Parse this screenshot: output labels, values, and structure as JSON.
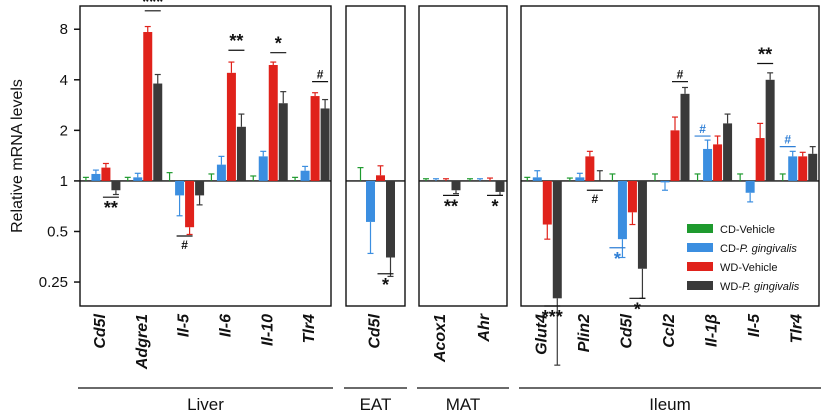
{
  "chart_data": {
    "type": "bar",
    "ylabel": "Relative mRNA levels",
    "yscale": "log2",
    "ylim": [
      0.18,
      11
    ],
    "yticks": [
      0.25,
      0.5,
      1,
      2,
      4,
      8
    ],
    "ytick_labels": [
      "0.25",
      "0.5",
      "1",
      "2",
      "4",
      "8"
    ],
    "baseline": 1,
    "series": [
      {
        "name": "CD-Vehicle",
        "legend_prefix": "CD-Vehicle",
        "legend_italic": "",
        "color": "#1e9a2e"
      },
      {
        "name": "CD-P. gingivalis",
        "legend_prefix": "CD-",
        "legend_italic": "P. gingivalis",
        "color": "#3b8ee0"
      },
      {
        "name": "WD-Vehicle",
        "legend_prefix": "WD-Vehicle",
        "legend_italic": "",
        "color": "#e0221b"
      },
      {
        "name": "WD-P. gingivalis",
        "legend_prefix": "WD-",
        "legend_italic": "P. gingivalis",
        "color": "#3a3a3a"
      }
    ],
    "panels": [
      {
        "label": "Liver",
        "categories": [
          {
            "name": "Cd5l",
            "values": [
              1,
              1.1,
              1.2,
              0.88
            ],
            "errors": [
              0.05,
              0.06,
              0.07,
              0.05
            ],
            "sig": [
              {
                "text": "**",
                "type": "star",
                "color": "#111111",
                "from": 2,
                "to": 3,
                "pos": "below",
                "value": 0.8
              }
            ]
          },
          {
            "name": "Adgre1",
            "values": [
              1,
              1.05,
              7.7,
              3.8
            ],
            "errors": [
              0.05,
              0.06,
              0.6,
              0.5
            ],
            "sig": [
              {
                "text": "***",
                "type": "star",
                "color": "#111111",
                "from": 2,
                "to": 3,
                "pos": "above",
                "value": 10.3
              }
            ]
          },
          {
            "name": "Il-5",
            "values": [
              1,
              0.82,
              0.53,
              0.82
            ],
            "errors": [
              0.12,
              0.2,
              0.05,
              0.1
            ],
            "sig": [
              {
                "text": "#",
                "type": "hash",
                "color": "#111111",
                "from": 1,
                "to": 2,
                "pos": "below",
                "value": 0.47
              }
            ]
          },
          {
            "name": "Il-6",
            "values": [
              1,
              1.25,
              4.4,
              2.1
            ],
            "errors": [
              0.1,
              0.15,
              0.7,
              0.4
            ],
            "sig": [
              {
                "text": "**",
                "type": "star",
                "color": "#111111",
                "from": 2,
                "to": 3,
                "pos": "above",
                "value": 6.0
              }
            ]
          },
          {
            "name": "Il-10",
            "values": [
              1,
              1.4,
              4.9,
              2.9
            ],
            "errors": [
              0.07,
              0.1,
              0.2,
              0.5
            ],
            "sig": [
              {
                "text": "*",
                "type": "star",
                "color": "#111111",
                "from": 2,
                "to": 3,
                "pos": "above",
                "value": 5.8
              }
            ]
          },
          {
            "name": "Tlr4",
            "values": [
              1,
              1.15,
              3.2,
              2.7
            ],
            "errors": [
              0.05,
              0.07,
              0.15,
              0.35
            ],
            "sig": [
              {
                "text": "#",
                "type": "hash",
                "color": "#111111",
                "from": 2,
                "to": 3,
                "pos": "above",
                "value": 3.9
              }
            ]
          }
        ]
      },
      {
        "label": "EAT",
        "categories": [
          {
            "name": "Cd5l",
            "values": [
              1,
              0.57,
              1.08,
              0.35
            ],
            "errors": [
              0.2,
              0.2,
              0.15,
              0.08
            ],
            "sig": [
              {
                "text": "*",
                "type": "star",
                "color": "#111111",
                "from": 2,
                "to": 3,
                "pos": "below",
                "value": 0.28
              }
            ]
          }
        ]
      },
      {
        "label": "MAT",
        "categories": [
          {
            "name": "Acox1",
            "values": [
              1,
              1,
              1,
              0.88
            ],
            "errors": [
              0.03,
              0.03,
              0.03,
              0.04
            ],
            "sig": [
              {
                "text": "**",
                "type": "star",
                "color": "#111111",
                "from": 2,
                "to": 3,
                "pos": "below",
                "value": 0.82
              }
            ]
          },
          {
            "name": "Ahr",
            "values": [
              1,
              1,
              1,
              0.86
            ],
            "errors": [
              0.03,
              0.03,
              0.04,
              0.04
            ],
            "sig": [
              {
                "text": "*",
                "type": "star",
                "color": "#111111",
                "from": 2,
                "to": 3,
                "pos": "below",
                "value": 0.82
              }
            ]
          }
        ]
      },
      {
        "label": "Ileum",
        "categories": [
          {
            "name": "Glut4",
            "values": [
              1,
              1.05,
              0.55,
              0.2
            ],
            "errors": [
              0.05,
              0.1,
              0.1,
              0.12
            ],
            "sig": [
              {
                "text": "***",
                "type": "star",
                "color": "#111111",
                "from": 2,
                "to": 3,
                "pos": "below",
                "value": 0.18
              }
            ]
          },
          {
            "name": "Plin2",
            "values": [
              1,
              1.05,
              1.4,
              1
            ],
            "errors": [
              0.04,
              0.06,
              0.1,
              0.15
            ],
            "sig": [
              {
                "text": "#",
                "type": "hash",
                "color": "#111111",
                "from": 2,
                "to": 3,
                "pos": "below",
                "value": 0.88
              }
            ]
          },
          {
            "name": "Cd5l",
            "values": [
              1,
              0.45,
              0.65,
              0.3
            ],
            "errors": [
              0.1,
              0.1,
              0.1,
              0.1
            ],
            "sig": [
              {
                "text": "*",
                "type": "star",
                "color": "#2f7fd6",
                "from": 0,
                "to": 1,
                "pos": "below",
                "value": 0.4
              },
              {
                "text": "*",
                "type": "star",
                "color": "#111111",
                "from": 2,
                "to": 3,
                "pos": "below",
                "value": 0.2
              }
            ]
          },
          {
            "name": "Ccl2",
            "values": [
              1,
              0.98,
              2.0,
              3.3
            ],
            "errors": [
              0.1,
              0.1,
              0.4,
              0.3
            ],
            "sig": [
              {
                "text": "#",
                "type": "hash",
                "color": "#111111",
                "from": 2,
                "to": 3,
                "pos": "above",
                "value": 3.9
              }
            ]
          },
          {
            "name": "Il-1β",
            "values": [
              1,
              1.55,
              1.65,
              2.2
            ],
            "errors": [
              0.1,
              0.2,
              0.2,
              0.3
            ],
            "sig": [
              {
                "text": "#",
                "type": "hash",
                "color": "#2f7fd6",
                "from": 0,
                "to": 1,
                "pos": "above",
                "value": 1.85
              }
            ]
          },
          {
            "name": "Il-5",
            "values": [
              1,
              0.85,
              1.8,
              4.0
            ],
            "errors": [
              0.1,
              0.1,
              0.4,
              0.4
            ],
            "sig": [
              {
                "text": "**",
                "type": "star",
                "color": "#111111",
                "from": 2,
                "to": 3,
                "pos": "above",
                "value": 5.0
              }
            ]
          },
          {
            "name": "Tlr4",
            "values": [
              1,
              1.4,
              1.4,
              1.45
            ],
            "errors": [
              0.1,
              0.1,
              0.08,
              0.15
            ],
            "sig": [
              {
                "text": "#",
                "type": "hash",
                "color": "#2f7fd6",
                "from": 0,
                "to": 1,
                "pos": "above",
                "value": 1.6
              }
            ]
          }
        ]
      }
    ]
  }
}
